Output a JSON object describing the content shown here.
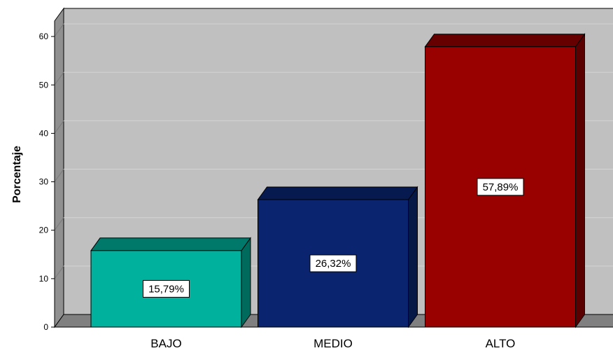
{
  "chart_data": {
    "type": "bar",
    "title": "",
    "xlabel": "",
    "ylabel": "Porcentaje",
    "categories": [
      "BAJO",
      "MEDIO",
      "ALTO"
    ],
    "values": [
      15.79,
      26.32,
      57.89
    ],
    "data_labels": [
      "15,79%",
      "26,32%",
      "57,89%"
    ],
    "yticks": [
      "0",
      "10",
      "20",
      "30",
      "40",
      "50",
      "60"
    ],
    "ylim": [
      0,
      63
    ],
    "grid": true,
    "style": "3d",
    "colors": {
      "bars": [
        "#00B19D",
        "#0A2470",
        "#990000"
      ],
      "bar_tops": [
        "#00796B",
        "#071A50",
        "#660000"
      ],
      "bar_sides": [
        "#006A5C",
        "#061845",
        "#5A0000"
      ],
      "plot_background": "#C0C0C0",
      "floor": "#808080",
      "side_wall": "#909090",
      "gridline": "#D4D4D4"
    }
  }
}
